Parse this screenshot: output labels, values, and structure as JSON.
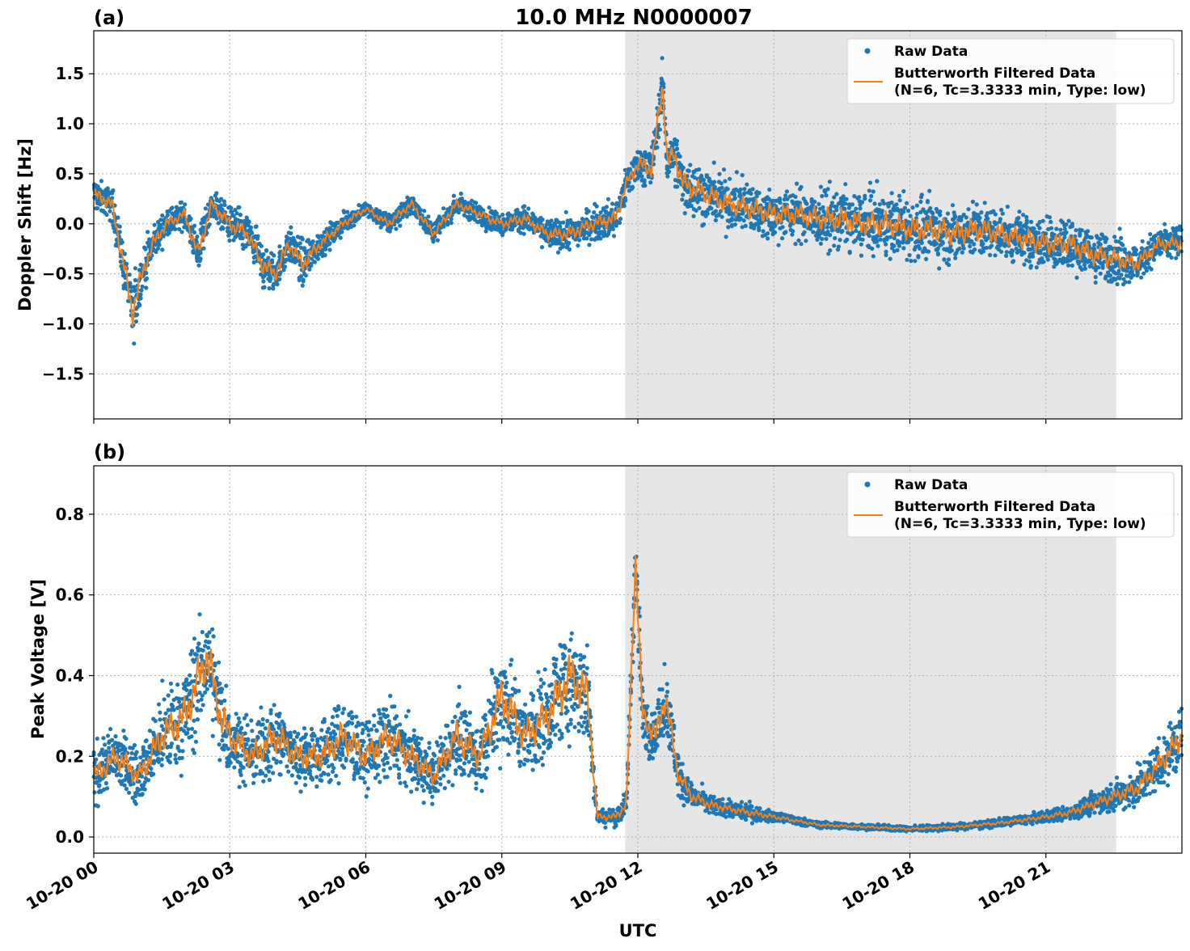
{
  "figure": {
    "title": "10.0 MHz N0000007",
    "xlabel": "UTC",
    "x_tick_labels": [
      "10-20 00",
      "10-20 03",
      "10-20 06",
      "10-20 09",
      "10-20 12",
      "10-20 15",
      "10-20 18",
      "10-20 21"
    ],
    "colors": {
      "raw": "#1f77b4",
      "filtered": "#ff7f0e",
      "shade": "#e6e6e6",
      "grid": "#b0b0b0"
    }
  },
  "chart_data": [
    {
      "type": "scatter",
      "panel_label": "(a)",
      "ylabel": "Doppler Shift [Hz]",
      "xlim_hours": [
        0,
        24
      ],
      "ylim": [
        -1.95,
        1.93
      ],
      "y_ticks": [
        -1.5,
        -1.0,
        -0.5,
        0.0,
        0.5,
        1.0,
        1.5
      ],
      "y_tick_labels": [
        "−1.5",
        "−1.0",
        "−0.5",
        "0.0",
        "0.5",
        "1.0",
        "1.5"
      ],
      "grid": true,
      "legend_position": "top-right",
      "shaded_interval_hours": [
        11.72,
        22.55
      ],
      "legend": [
        "Raw Data",
        "Butterworth Filtered Data",
        "(N=6, Tc=3.3333 min, Type: low)"
      ],
      "series": [
        {
          "name": "Raw Data",
          "style": "scatter",
          "x_hours": [
            0.0,
            0.4,
            0.7,
            0.85,
            1.0,
            1.3,
            1.6,
            2.0,
            2.3,
            2.6,
            3.0,
            3.4,
            3.7,
            4.0,
            4.3,
            4.6,
            5.0,
            5.5,
            6.0,
            6.5,
            7.0,
            7.5,
            8.0,
            8.5,
            9.0,
            9.5,
            10.0,
            10.5,
            11.0,
            11.5,
            11.75,
            12.0,
            12.3,
            12.55,
            12.65,
            12.8,
            13.0,
            13.5,
            14.0,
            14.5,
            15.0,
            15.5,
            16.0,
            16.5,
            17.0,
            17.5,
            18.0,
            18.5,
            19.0,
            19.5,
            20.0,
            20.5,
            21.0,
            21.5,
            22.0,
            22.5,
            23.0,
            23.5,
            24.0
          ],
          "y_center": [
            0.3,
            0.2,
            -0.5,
            -0.9,
            -0.6,
            -0.2,
            0.0,
            0.1,
            -0.3,
            0.2,
            0.0,
            -0.1,
            -0.4,
            -0.5,
            -0.2,
            -0.4,
            -0.2,
            0.0,
            0.15,
            0.0,
            0.2,
            -0.1,
            0.2,
            0.1,
            0.0,
            0.05,
            -0.1,
            -0.1,
            0.0,
            0.05,
            0.4,
            0.6,
            0.55,
            1.4,
            0.6,
            0.7,
            0.4,
            0.3,
            0.2,
            0.15,
            0.1,
            0.1,
            0.05,
            0.05,
            0.0,
            0.0,
            -0.05,
            -0.05,
            -0.1,
            -0.05,
            -0.1,
            -0.15,
            -0.2,
            -0.2,
            -0.3,
            -0.35,
            -0.4,
            -0.2,
            -0.2
          ],
          "y_spread": [
            0.25,
            0.25,
            0.4,
            0.5,
            0.35,
            0.25,
            0.2,
            0.2,
            0.3,
            0.2,
            0.25,
            0.3,
            0.35,
            0.3,
            0.25,
            0.35,
            0.2,
            0.15,
            0.1,
            0.15,
            0.15,
            0.15,
            0.15,
            0.15,
            0.15,
            0.2,
            0.2,
            0.25,
            0.25,
            0.3,
            0.25,
            0.3,
            0.35,
            0.35,
            0.35,
            0.4,
            0.4,
            0.4,
            0.4,
            0.4,
            0.4,
            0.4,
            0.4,
            0.45,
            0.45,
            0.45,
            0.45,
            0.45,
            0.45,
            0.45,
            0.4,
            0.4,
            0.4,
            0.4,
            0.4,
            0.35,
            0.3,
            0.25,
            0.25
          ]
        },
        {
          "name": "Butterworth Filtered Data",
          "style": "line",
          "x_hours": [
            0.0,
            0.4,
            0.7,
            0.85,
            1.0,
            1.3,
            1.6,
            2.0,
            2.3,
            2.6,
            3.0,
            3.4,
            3.7,
            4.0,
            4.3,
            4.6,
            5.0,
            5.5,
            6.0,
            6.5,
            7.0,
            7.5,
            8.0,
            8.5,
            9.0,
            9.5,
            10.0,
            10.5,
            11.0,
            11.5,
            11.75,
            12.0,
            12.3,
            12.55,
            12.65,
            12.8,
            13.0,
            13.5,
            14.0,
            14.5,
            15.0,
            15.5,
            16.0,
            16.5,
            17.0,
            17.5,
            18.0,
            18.5,
            19.0,
            19.5,
            20.0,
            20.5,
            21.0,
            21.5,
            22.0,
            22.5,
            23.0,
            23.5,
            24.0
          ],
          "y": [
            0.3,
            0.2,
            -0.5,
            -0.9,
            -0.6,
            -0.2,
            0.0,
            0.1,
            -0.3,
            0.2,
            0.0,
            -0.1,
            -0.4,
            -0.5,
            -0.2,
            -0.4,
            -0.2,
            0.0,
            0.15,
            0.0,
            0.2,
            -0.1,
            0.2,
            0.1,
            0.0,
            0.05,
            -0.1,
            -0.1,
            0.0,
            0.05,
            0.4,
            0.6,
            0.55,
            1.4,
            0.6,
            0.7,
            0.4,
            0.3,
            0.2,
            0.15,
            0.1,
            0.1,
            0.05,
            0.05,
            0.0,
            0.0,
            -0.05,
            -0.05,
            -0.1,
            -0.05,
            -0.1,
            -0.15,
            -0.2,
            -0.2,
            -0.3,
            -0.35,
            -0.4,
            -0.2,
            -0.2
          ]
        }
      ]
    },
    {
      "type": "scatter",
      "panel_label": "(b)",
      "ylabel": "Peak Voltage [V]",
      "xlim_hours": [
        0,
        24
      ],
      "ylim": [
        -0.04,
        0.92
      ],
      "y_ticks": [
        0.0,
        0.2,
        0.4,
        0.6,
        0.8
      ],
      "y_tick_labels": [
        "0.0",
        "0.2",
        "0.4",
        "0.6",
        "0.8"
      ],
      "grid": true,
      "legend_position": "top-right",
      "shaded_interval_hours": [
        11.72,
        22.55
      ],
      "legend": [
        "Raw Data",
        "Butterworth Filtered Data",
        "(N=6, Tc=3.3333 min, Type: low)"
      ],
      "series": [
        {
          "name": "Raw Data",
          "style": "scatter",
          "x_hours": [
            0.0,
            0.5,
            1.0,
            1.5,
            2.0,
            2.5,
            2.8,
            3.0,
            3.5,
            4.0,
            4.5,
            5.0,
            5.5,
            6.0,
            6.5,
            7.0,
            7.5,
            8.0,
            8.5,
            9.0,
            9.5,
            10.0,
            10.5,
            10.9,
            11.1,
            11.5,
            11.75,
            11.95,
            12.1,
            12.4,
            12.6,
            12.9,
            13.2,
            13.6,
            14.0,
            14.5,
            15.0,
            15.5,
            16.0,
            17.0,
            18.0,
            19.0,
            20.0,
            21.0,
            21.5,
            22.0,
            22.5,
            23.0,
            23.5,
            24.0
          ],
          "y_center": [
            0.15,
            0.2,
            0.15,
            0.25,
            0.3,
            0.45,
            0.3,
            0.25,
            0.2,
            0.25,
            0.2,
            0.2,
            0.25,
            0.2,
            0.25,
            0.2,
            0.15,
            0.25,
            0.2,
            0.35,
            0.25,
            0.3,
            0.4,
            0.35,
            0.05,
            0.05,
            0.08,
            0.7,
            0.3,
            0.25,
            0.35,
            0.15,
            0.1,
            0.08,
            0.07,
            0.06,
            0.05,
            0.04,
            0.03,
            0.025,
            0.02,
            0.025,
            0.035,
            0.05,
            0.06,
            0.08,
            0.1,
            0.12,
            0.18,
            0.25
          ],
          "y_spread": [
            0.1,
            0.12,
            0.1,
            0.15,
            0.18,
            0.22,
            0.18,
            0.15,
            0.12,
            0.15,
            0.12,
            0.12,
            0.15,
            0.12,
            0.15,
            0.12,
            0.1,
            0.15,
            0.12,
            0.2,
            0.15,
            0.18,
            0.22,
            0.2,
            0.03,
            0.03,
            0.05,
            0.15,
            0.12,
            0.1,
            0.15,
            0.08,
            0.05,
            0.04,
            0.03,
            0.03,
            0.02,
            0.015,
            0.012,
            0.01,
            0.01,
            0.012,
            0.015,
            0.02,
            0.03,
            0.04,
            0.05,
            0.07,
            0.1,
            0.12
          ]
        },
        {
          "name": "Butterworth Filtered Data",
          "style": "line",
          "x_hours": [
            0.0,
            0.5,
            1.0,
            1.5,
            2.0,
            2.5,
            2.8,
            3.0,
            3.5,
            4.0,
            4.5,
            5.0,
            5.5,
            6.0,
            6.5,
            7.0,
            7.5,
            8.0,
            8.5,
            9.0,
            9.5,
            10.0,
            10.5,
            10.9,
            11.1,
            11.5,
            11.75,
            11.95,
            12.1,
            12.4,
            12.6,
            12.9,
            13.2,
            13.6,
            14.0,
            14.5,
            15.0,
            15.5,
            16.0,
            17.0,
            18.0,
            19.0,
            20.0,
            21.0,
            21.5,
            22.0,
            22.5,
            23.0,
            23.5,
            24.0
          ],
          "y": [
            0.15,
            0.2,
            0.15,
            0.25,
            0.3,
            0.45,
            0.3,
            0.25,
            0.2,
            0.25,
            0.2,
            0.2,
            0.25,
            0.2,
            0.25,
            0.2,
            0.15,
            0.25,
            0.2,
            0.35,
            0.25,
            0.3,
            0.4,
            0.35,
            0.05,
            0.05,
            0.08,
            0.7,
            0.3,
            0.25,
            0.35,
            0.15,
            0.1,
            0.08,
            0.07,
            0.06,
            0.05,
            0.04,
            0.03,
            0.025,
            0.02,
            0.025,
            0.035,
            0.05,
            0.06,
            0.08,
            0.1,
            0.12,
            0.18,
            0.25
          ]
        }
      ]
    }
  ]
}
